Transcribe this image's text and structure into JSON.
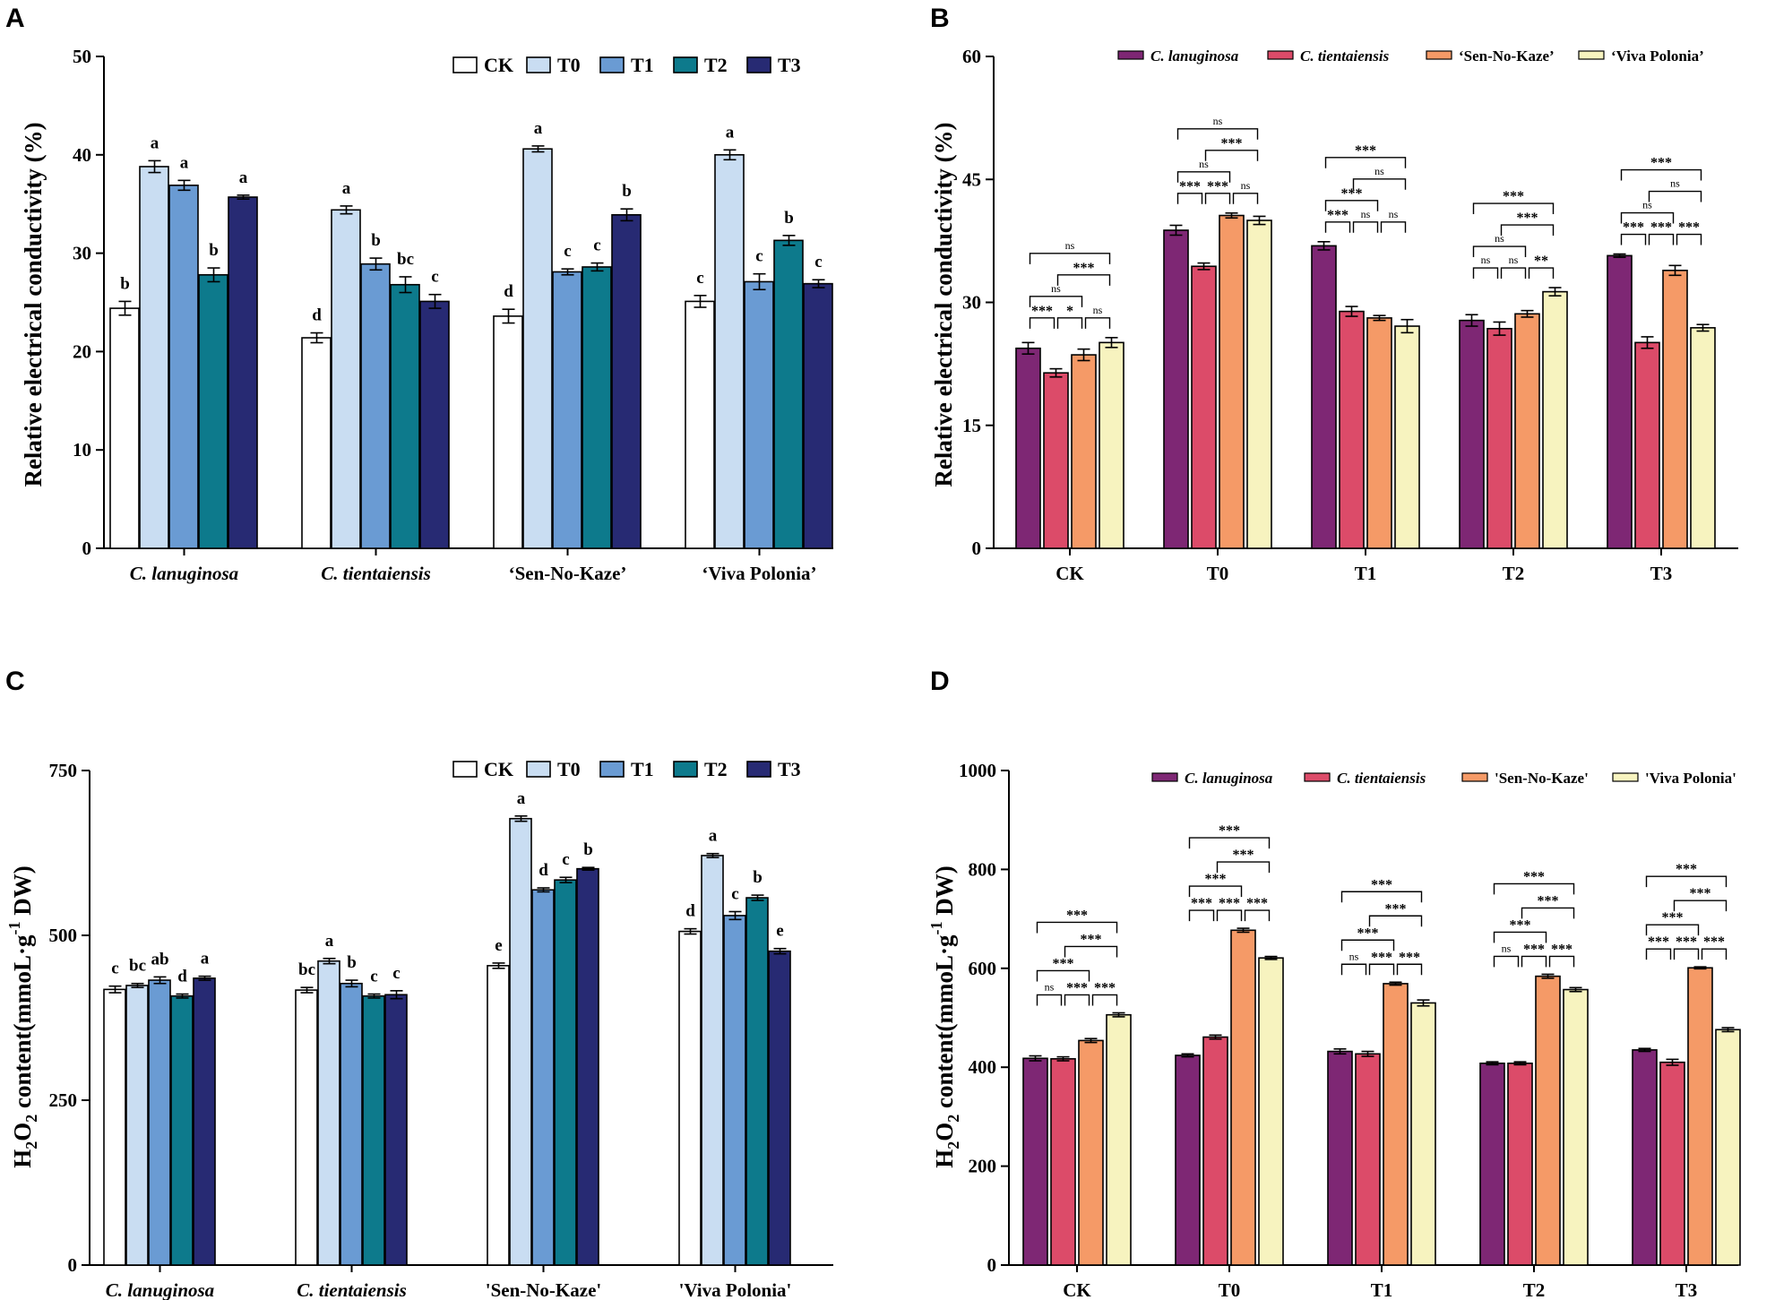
{
  "colors": {
    "treat": [
      "#ffffff",
      "#c9ddf2",
      "#6a9bd3",
      "#0d7a8c",
      "#272a73"
    ],
    "cult": [
      "#7e2774",
      "#dc4b69",
      "#f59a67",
      "#f7f3bf"
    ]
  },
  "chart_data": [
    {
      "panel": "A",
      "type": "bar",
      "ylabel": "Relative electrical conductivity (%)",
      "ylim": [
        0,
        50
      ],
      "yticks": [
        "0",
        "10",
        "20",
        "30",
        "40",
        "50"
      ],
      "legend_position": "top-right",
      "categories": [
        "C. lanuginosa",
        "C. tientaiensis",
        "‘Sen-No-Kaze’",
        "‘Viva Polonia’"
      ],
      "category_italic": [
        true,
        true,
        false,
        false
      ],
      "series": [
        {
          "name": "CK",
          "values": [
            24.4,
            21.4,
            23.6,
            25.1
          ],
          "errors": [
            0.7,
            0.5,
            0.7,
            0.6
          ],
          "letters": [
            "b",
            "d",
            "d",
            "c"
          ]
        },
        {
          "name": "T0",
          "values": [
            38.8,
            34.4,
            40.6,
            40.0
          ],
          "errors": [
            0.6,
            0.4,
            0.3,
            0.5
          ],
          "letters": [
            "a",
            "a",
            "a",
            "a"
          ]
        },
        {
          "name": "T1",
          "values": [
            36.9,
            28.9,
            28.1,
            27.1
          ],
          "errors": [
            0.5,
            0.6,
            0.3,
            0.8
          ],
          "letters": [
            "a",
            "b",
            "c",
            "c"
          ]
        },
        {
          "name": "T2",
          "values": [
            27.8,
            26.8,
            28.6,
            31.3
          ],
          "errors": [
            0.7,
            0.8,
            0.4,
            0.5
          ],
          "letters": [
            "b",
            "bc",
            "c",
            "b"
          ]
        },
        {
          "name": "T3",
          "values": [
            35.7,
            25.1,
            33.9,
            26.9
          ],
          "errors": [
            0.2,
            0.7,
            0.6,
            0.4
          ],
          "letters": [
            "a",
            "c",
            "b",
            "c"
          ]
        }
      ]
    },
    {
      "panel": "B",
      "type": "bar",
      "ylabel": "Relative electrical conductivity (%)",
      "ylim": [
        0,
        60
      ],
      "yticks": [
        "0",
        "15",
        "30",
        "45",
        "60"
      ],
      "legend_position": "top",
      "categories": [
        "CK",
        "T0",
        "T1",
        "T2",
        "T3"
      ],
      "series": [
        {
          "name": "C. lanuginosa",
          "italic": true,
          "values": [
            24.4,
            38.8,
            36.9,
            27.8,
            35.7
          ],
          "errors": [
            0.7,
            0.6,
            0.5,
            0.7,
            0.2
          ]
        },
        {
          "name": "C. tientaiensis",
          "italic": true,
          "values": [
            21.4,
            34.4,
            28.9,
            26.8,
            25.1
          ],
          "errors": [
            0.5,
            0.4,
            0.6,
            0.8,
            0.7
          ]
        },
        {
          "name": "‘Sen-No-Kaze’",
          "italic": false,
          "values": [
            23.6,
            40.6,
            28.1,
            28.6,
            33.9
          ],
          "errors": [
            0.7,
            0.3,
            0.3,
            0.4,
            0.6
          ]
        },
        {
          "name": "‘Viva Polonia’",
          "italic": false,
          "values": [
            25.1,
            40.0,
            27.1,
            31.3,
            26.9
          ],
          "errors": [
            0.6,
            0.5,
            0.8,
            0.5,
            0.4
          ]
        }
      ],
      "comparisons": [
        [
          [
            "0-1",
            "***"
          ],
          [
            "1-2",
            "*"
          ],
          [
            "2-3",
            "ns"
          ],
          [
            "0-2",
            "ns"
          ],
          [
            "1-3",
            "***"
          ],
          [
            "0-3",
            "ns"
          ]
        ],
        [
          [
            "0-1",
            "***"
          ],
          [
            "1-2",
            "***"
          ],
          [
            "2-3",
            "ns"
          ],
          [
            "0-2",
            "ns"
          ],
          [
            "1-3",
            "***"
          ],
          [
            "0-3",
            "ns"
          ]
        ],
        [
          [
            "0-1",
            "***"
          ],
          [
            "1-2",
            "ns"
          ],
          [
            "2-3",
            "ns"
          ],
          [
            "0-2",
            "***"
          ],
          [
            "1-3",
            "ns"
          ],
          [
            "0-3",
            "***"
          ]
        ],
        [
          [
            "0-1",
            "ns"
          ],
          [
            "1-2",
            "ns"
          ],
          [
            "2-3",
            "**"
          ],
          [
            "0-2",
            "ns"
          ],
          [
            "1-3",
            "***"
          ],
          [
            "0-3",
            "***"
          ]
        ],
        [
          [
            "0-1",
            "***"
          ],
          [
            "1-2",
            "***"
          ],
          [
            "2-3",
            "***"
          ],
          [
            "0-2",
            "ns"
          ],
          [
            "1-3",
            "ns"
          ],
          [
            "0-3",
            "***"
          ]
        ]
      ]
    },
    {
      "panel": "C",
      "type": "bar",
      "ylabel_main": "H",
      "ylabel_sub1": "2",
      "ylabel_mid": "O",
      "ylabel_sub2": "2",
      "ylabel_rest": " content(mmoL·g",
      "ylabel_sup": "-1",
      "ylabel_end": " DW)",
      "ylim": [
        0,
        750
      ],
      "yticks": [
        "0",
        "250",
        "500",
        "750"
      ],
      "legend_position": "top-right",
      "categories": [
        "C. lanuginosa",
        "C. tientaiensis",
        "'Sen-No-Kaze'",
        "'Viva Polonia'"
      ],
      "category_italic": [
        true,
        true,
        false,
        false
      ],
      "series": [
        {
          "name": "CK",
          "values": [
            418,
            417,
            454,
            506
          ],
          "errors": [
            5,
            4,
            4,
            4
          ],
          "letters": [
            "c",
            "bc",
            "e",
            "d"
          ]
        },
        {
          "name": "T0",
          "values": [
            424,
            461,
            677,
            621
          ],
          "errors": [
            3,
            4,
            4,
            3
          ],
          "letters": [
            "bc",
            "a",
            "a",
            "a"
          ]
        },
        {
          "name": "T1",
          "values": [
            432,
            427,
            569,
            530
          ],
          "errors": [
            5,
            5,
            3,
            6
          ],
          "letters": [
            "ab",
            "b",
            "d",
            "c"
          ]
        },
        {
          "name": "T2",
          "values": [
            408,
            408,
            584,
            557
          ],
          "errors": [
            3,
            3,
            4,
            4
          ],
          "letters": [
            "d",
            "c",
            "c",
            "b"
          ]
        },
        {
          "name": "T3",
          "values": [
            435,
            410,
            601,
            476
          ],
          "errors": [
            3,
            6,
            2,
            4
          ],
          "letters": [
            "a",
            "c",
            "b",
            "e"
          ]
        }
      ]
    },
    {
      "panel": "D",
      "type": "bar",
      "ylabel_main": "H",
      "ylabel_sub1": "2",
      "ylabel_mid": "O",
      "ylabel_sub2": "2",
      "ylabel_rest": " content(mmoL·g",
      "ylabel_sup": "-1",
      "ylabel_end": " DW)",
      "ylim": [
        0,
        1000
      ],
      "yticks": [
        "0",
        "200",
        "400",
        "600",
        "800",
        "1000"
      ],
      "legend_position": "top",
      "categories": [
        "CK",
        "T0",
        "T1",
        "T2",
        "T3"
      ],
      "series": [
        {
          "name": "C. lanuginosa",
          "italic": true,
          "values": [
            418,
            424,
            432,
            408,
            435
          ],
          "errors": [
            5,
            3,
            5,
            3,
            3
          ]
        },
        {
          "name": "C. tientaiensis",
          "italic": true,
          "values": [
            417,
            461,
            427,
            408,
            410
          ],
          "errors": [
            4,
            4,
            5,
            3,
            6
          ]
        },
        {
          "name": "'Sen-No-Kaze'",
          "italic": false,
          "values": [
            454,
            677,
            569,
            584,
            601
          ],
          "errors": [
            4,
            4,
            3,
            4,
            2
          ]
        },
        {
          "name": "'Viva Polonia'",
          "italic": false,
          "values": [
            506,
            621,
            530,
            557,
            476
          ],
          "errors": [
            4,
            3,
            6,
            4,
            4
          ]
        }
      ],
      "comparisons": [
        [
          [
            "0-1",
            "ns"
          ],
          [
            "1-2",
            "***"
          ],
          [
            "2-3",
            "***"
          ],
          [
            "0-2",
            "***"
          ],
          [
            "1-3",
            "***"
          ],
          [
            "0-3",
            "***"
          ]
        ],
        [
          [
            "0-1",
            "***"
          ],
          [
            "1-2",
            "***"
          ],
          [
            "2-3",
            "***"
          ],
          [
            "0-2",
            "***"
          ],
          [
            "1-3",
            "***"
          ],
          [
            "0-3",
            "***"
          ]
        ],
        [
          [
            "0-1",
            "ns"
          ],
          [
            "1-2",
            "***"
          ],
          [
            "2-3",
            "***"
          ],
          [
            "0-2",
            "***"
          ],
          [
            "1-3",
            "***"
          ],
          [
            "0-3",
            "***"
          ]
        ],
        [
          [
            "0-1",
            "ns"
          ],
          [
            "1-2",
            "***"
          ],
          [
            "2-3",
            "***"
          ],
          [
            "0-2",
            "***"
          ],
          [
            "1-3",
            "***"
          ],
          [
            "0-3",
            "***"
          ]
        ],
        [
          [
            "0-1",
            "***"
          ],
          [
            "1-2",
            "***"
          ],
          [
            "2-3",
            "***"
          ],
          [
            "0-2",
            "***"
          ],
          [
            "1-3",
            "***"
          ],
          [
            "0-3",
            "***"
          ]
        ]
      ]
    }
  ]
}
